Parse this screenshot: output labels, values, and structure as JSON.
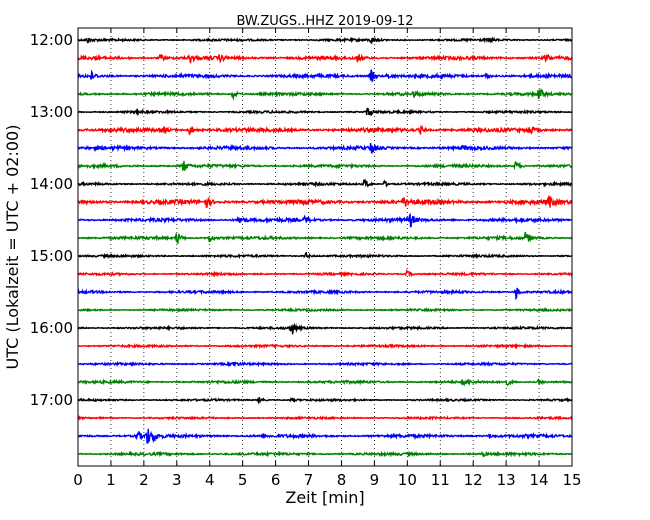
{
  "chart_data": {
    "type": "line",
    "title": "BW.ZUGS..HHZ 2019-09-12",
    "xlabel": "Zeit  [min]",
    "ylabel": "UTC (Lokalzeit = UTC + 02:00)",
    "xlim": [
      0,
      15
    ],
    "x_ticks": [
      "0",
      "1",
      "2",
      "3",
      "4",
      "5",
      "6",
      "7",
      "8",
      "9",
      "10",
      "11",
      "12",
      "13",
      "14",
      "15"
    ],
    "grid": "vertical-dotted",
    "y_ticks": [
      "12:00",
      "13:00",
      "14:00",
      "15:00",
      "16:00",
      "17:00"
    ],
    "trace_colors": [
      "#000000",
      "#ff0000",
      "#0000ff",
      "#008000"
    ],
    "traces": [
      {
        "start": "12:00",
        "noise": 0.8,
        "events": [
          [
            0.3,
            2.5
          ],
          [
            8.9,
            3
          ],
          [
            12.5,
            2
          ]
        ]
      },
      {
        "start": "12:15",
        "noise": 1.2,
        "events": [
          [
            2.5,
            4
          ],
          [
            3.4,
            5
          ],
          [
            4.3,
            3
          ],
          [
            8.5,
            4
          ],
          [
            14.2,
            5
          ]
        ]
      },
      {
        "start": "12:30",
        "noise": 1.2,
        "events": [
          [
            0.4,
            4
          ],
          [
            8.9,
            7
          ],
          [
            9.4,
            3
          ],
          [
            12.4,
            3
          ]
        ]
      },
      {
        "start": "12:45",
        "noise": 1.0,
        "events": [
          [
            4.7,
            5
          ],
          [
            10.2,
            3
          ],
          [
            14.0,
            7
          ]
        ]
      },
      {
        "start": "13:00",
        "noise": 0.8,
        "events": [
          [
            1.8,
            3
          ],
          [
            8.8,
            6
          ]
        ]
      },
      {
        "start": "13:15",
        "noise": 1.4,
        "events": [
          [
            2.6,
            3
          ],
          [
            3.4,
            6
          ],
          [
            10.4,
            4
          ],
          [
            13.7,
            6
          ]
        ]
      },
      {
        "start": "13:30",
        "noise": 1.2,
        "events": [
          [
            8.9,
            7
          ],
          [
            11.7,
            2
          ]
        ]
      },
      {
        "start": "13:45",
        "noise": 1.0,
        "events": [
          [
            3.2,
            6
          ],
          [
            13.3,
            6
          ]
        ]
      },
      {
        "start": "14:00",
        "noise": 0.9,
        "events": [
          [
            8.7,
            6
          ],
          [
            9.3,
            3
          ]
        ]
      },
      {
        "start": "14:15",
        "noise": 1.6,
        "events": [
          [
            3.9,
            6
          ],
          [
            9.9,
            5
          ],
          [
            14.3,
            6
          ]
        ]
      },
      {
        "start": "14:30",
        "noise": 1.2,
        "events": [
          [
            4.9,
            6
          ],
          [
            6.9,
            4
          ],
          [
            10.1,
            7
          ]
        ]
      },
      {
        "start": "14:45",
        "noise": 1.0,
        "events": [
          [
            3.0,
            8
          ],
          [
            4.0,
            5
          ],
          [
            13.6,
            7
          ]
        ]
      },
      {
        "start": "15:00",
        "noise": 0.8,
        "events": [
          [
            6.9,
            4
          ]
        ]
      },
      {
        "start": "15:15",
        "noise": 0.8,
        "events": [
          [
            10.0,
            4
          ]
        ]
      },
      {
        "start": "15:30",
        "noise": 0.9,
        "events": [
          [
            13.3,
            7
          ]
        ]
      },
      {
        "start": "15:45",
        "noise": 0.7,
        "events": []
      },
      {
        "start": "16:00",
        "noise": 0.8,
        "events": [
          [
            6.5,
            7
          ]
        ]
      },
      {
        "start": "16:15",
        "noise": 0.8,
        "events": []
      },
      {
        "start": "16:30",
        "noise": 0.8,
        "events": [
          [
            4.7,
            3
          ]
        ]
      },
      {
        "start": "16:45",
        "noise": 0.9,
        "events": [
          [
            11.7,
            3
          ],
          [
            13.0,
            4
          ],
          [
            14.0,
            3
          ]
        ]
      },
      {
        "start": "17:00",
        "noise": 0.7,
        "events": [
          [
            5.5,
            3
          ],
          [
            6.5,
            2
          ]
        ]
      },
      {
        "start": "17:15",
        "noise": 0.7,
        "events": []
      },
      {
        "start": "17:30",
        "noise": 1.1,
        "events": [
          [
            1.8,
            6
          ],
          [
            2.1,
            9
          ],
          [
            2.3,
            5
          ],
          [
            12.5,
            2
          ]
        ]
      },
      {
        "start": "17:45",
        "noise": 0.9,
        "events": [
          [
            12.3,
            2
          ]
        ]
      }
    ]
  }
}
